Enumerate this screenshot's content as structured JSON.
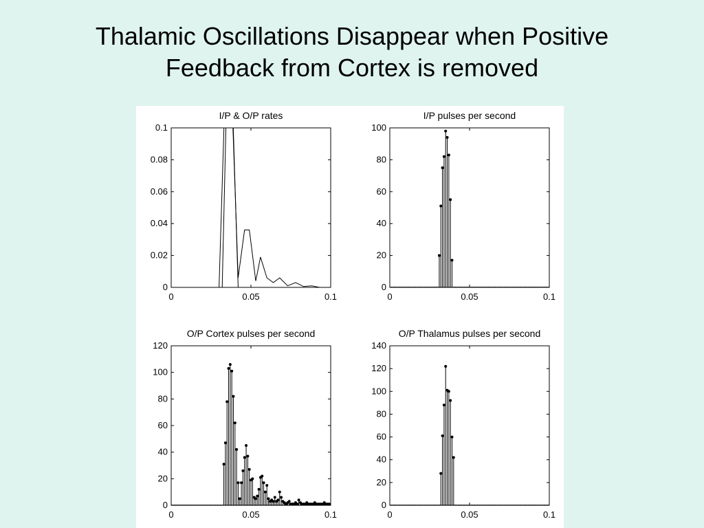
{
  "slide": {
    "title_line1": "Thalamic Oscillations Disappear when Positive",
    "title_line2": "Feedback from Cortex is removed"
  },
  "chart_data": [
    {
      "type": "line",
      "title": "I/P & O/P rates",
      "xlim": [
        0,
        0.1
      ],
      "ylim": [
        0,
        0.1
      ],
      "x_ticks": [
        "0",
        "0.05",
        "0.1"
      ],
      "y_ticks": [
        "0",
        "0.02",
        "0.04",
        "0.06",
        "0.08",
        "0.1"
      ],
      "grid": false,
      "series": [
        {
          "x": [
            0,
            0.03,
            0.034,
            0.038,
            0.042,
            0.1
          ],
          "y": [
            0,
            0,
            0.13,
            0.13,
            0,
            0
          ]
        },
        {
          "x": [
            0,
            0.032,
            0.035,
            0.038,
            0.042,
            0.046,
            0.049,
            0.053,
            0.056,
            0.06,
            0.064,
            0.068,
            0.073,
            0.078,
            0.083,
            0.088,
            0.093,
            0.1
          ],
          "y": [
            0,
            0,
            0.13,
            0.12,
            0.006,
            0.036,
            0.036,
            0.004,
            0.019,
            0.006,
            0.003,
            0.006,
            0.001,
            0.003,
            0.0005,
            0.001,
            0,
            0
          ]
        }
      ]
    },
    {
      "type": "bar",
      "style": "stem",
      "title": "I/P pulses per second",
      "xlim": [
        0,
        0.1
      ],
      "ylim": [
        0,
        100
      ],
      "x_ticks": [
        "0",
        "0.05",
        "0.1"
      ],
      "y_ticks": [
        "0",
        "20",
        "40",
        "60",
        "80",
        "100"
      ],
      "grid": false,
      "x": [
        0.031,
        0.032,
        0.033,
        0.034,
        0.035,
        0.036,
        0.037,
        0.038,
        0.039
      ],
      "values": [
        20,
        51,
        75,
        82,
        98,
        94,
        83,
        55,
        17
      ]
    },
    {
      "type": "bar",
      "style": "stem",
      "title": "O/P Cortex pulses per second",
      "xlim": [
        0,
        0.1
      ],
      "ylim": [
        0,
        120
      ],
      "x_ticks": [
        "0",
        "0.05",
        "0.1"
      ],
      "y_ticks": [
        "0",
        "20",
        "40",
        "60",
        "80",
        "100",
        "120"
      ],
      "grid": false,
      "x": [
        0.033,
        0.034,
        0.035,
        0.036,
        0.037,
        0.038,
        0.039,
        0.04,
        0.041,
        0.042,
        0.043,
        0.044,
        0.045,
        0.046,
        0.047,
        0.048,
        0.049,
        0.05,
        0.051,
        0.052,
        0.053,
        0.054,
        0.055,
        0.056,
        0.057,
        0.058,
        0.059,
        0.06,
        0.061,
        0.062,
        0.063,
        0.064,
        0.065,
        0.066,
        0.067,
        0.068,
        0.069,
        0.07,
        0.071,
        0.072,
        0.073,
        0.074,
        0.075,
        0.076,
        0.077,
        0.078,
        0.079,
        0.08,
        0.081,
        0.082,
        0.083,
        0.084,
        0.085,
        0.086,
        0.087,
        0.088,
        0.089,
        0.09,
        0.091,
        0.092,
        0.093,
        0.094,
        0.095,
        0.096,
        0.097,
        0.098,
        0.099
      ],
      "values": [
        31,
        47,
        78,
        103,
        106,
        101,
        82,
        62,
        42,
        17,
        5,
        17,
        26,
        36,
        45,
        37,
        27,
        19,
        20,
        6,
        5,
        7,
        12,
        21,
        22,
        17,
        10,
        15,
        5,
        3,
        4,
        3,
        6,
        3,
        4,
        10,
        6,
        3,
        2,
        1,
        2,
        3,
        1,
        1,
        1,
        2,
        1,
        4,
        2,
        1,
        1,
        1,
        2,
        1,
        1,
        1,
        1,
        2,
        1,
        1,
        1,
        1,
        1,
        2,
        1,
        1,
        1
      ]
    },
    {
      "type": "bar",
      "style": "stem",
      "title": "O/P Thalamus pulses per second",
      "xlim": [
        0,
        0.1
      ],
      "ylim": [
        0,
        140
      ],
      "x_ticks": [
        "0",
        "0.05",
        "0.1"
      ],
      "y_ticks": [
        "0",
        "20",
        "40",
        "60",
        "80",
        "100",
        "120",
        "140"
      ],
      "grid": false,
      "x": [
        0.032,
        0.033,
        0.034,
        0.035,
        0.036,
        0.037,
        0.038,
        0.039,
        0.04
      ],
      "values": [
        28,
        61,
        88,
        122,
        101,
        100,
        92,
        60,
        42
      ]
    }
  ]
}
